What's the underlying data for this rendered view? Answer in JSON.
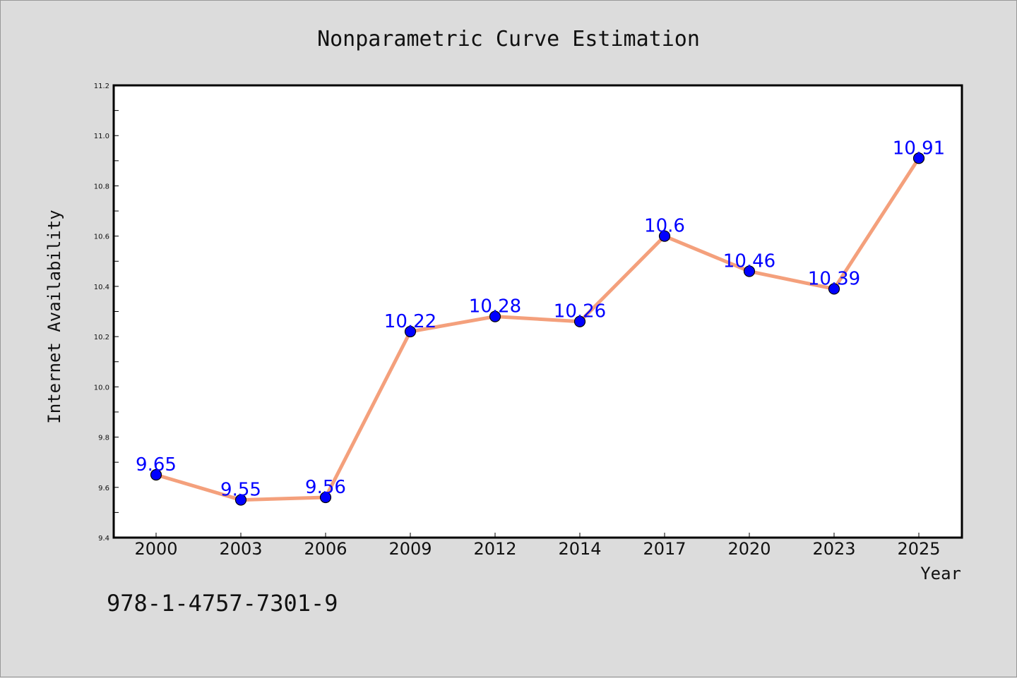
{
  "chart_data": {
    "type": "line",
    "title": "Nonparametric Curve Estimation",
    "xlabel": "Year",
    "ylabel": "Internet Availability",
    "categories": [
      "2000",
      "2003",
      "2006",
      "2009",
      "2012",
      "2014",
      "2017",
      "2020",
      "2023",
      "2025"
    ],
    "values": [
      9.65,
      9.55,
      9.56,
      10.22,
      10.28,
      10.26,
      10.6,
      10.46,
      10.39,
      10.91
    ],
    "data_labels": [
      "9.65",
      "9.55",
      "9.56",
      "10.22",
      "10.28",
      "10.26",
      "10.6",
      "10.46",
      "10.39",
      "10.91"
    ],
    "ylim": [
      9.4,
      11.2
    ],
    "yticks": [
      "9.4",
      "9.6",
      "9.8",
      "10.0",
      "10.2",
      "10.4",
      "10.6",
      "10.8",
      "11.0",
      "11.2"
    ],
    "grid": false,
    "legend": "none",
    "line_color": "#f4a07c",
    "marker_color": "#0000ff",
    "label_color": "#0000ff"
  },
  "annotation": "978-1-4757-7301-9",
  "colors": {
    "background": "#dcdcdc",
    "plot_background": "#ffffff"
  }
}
